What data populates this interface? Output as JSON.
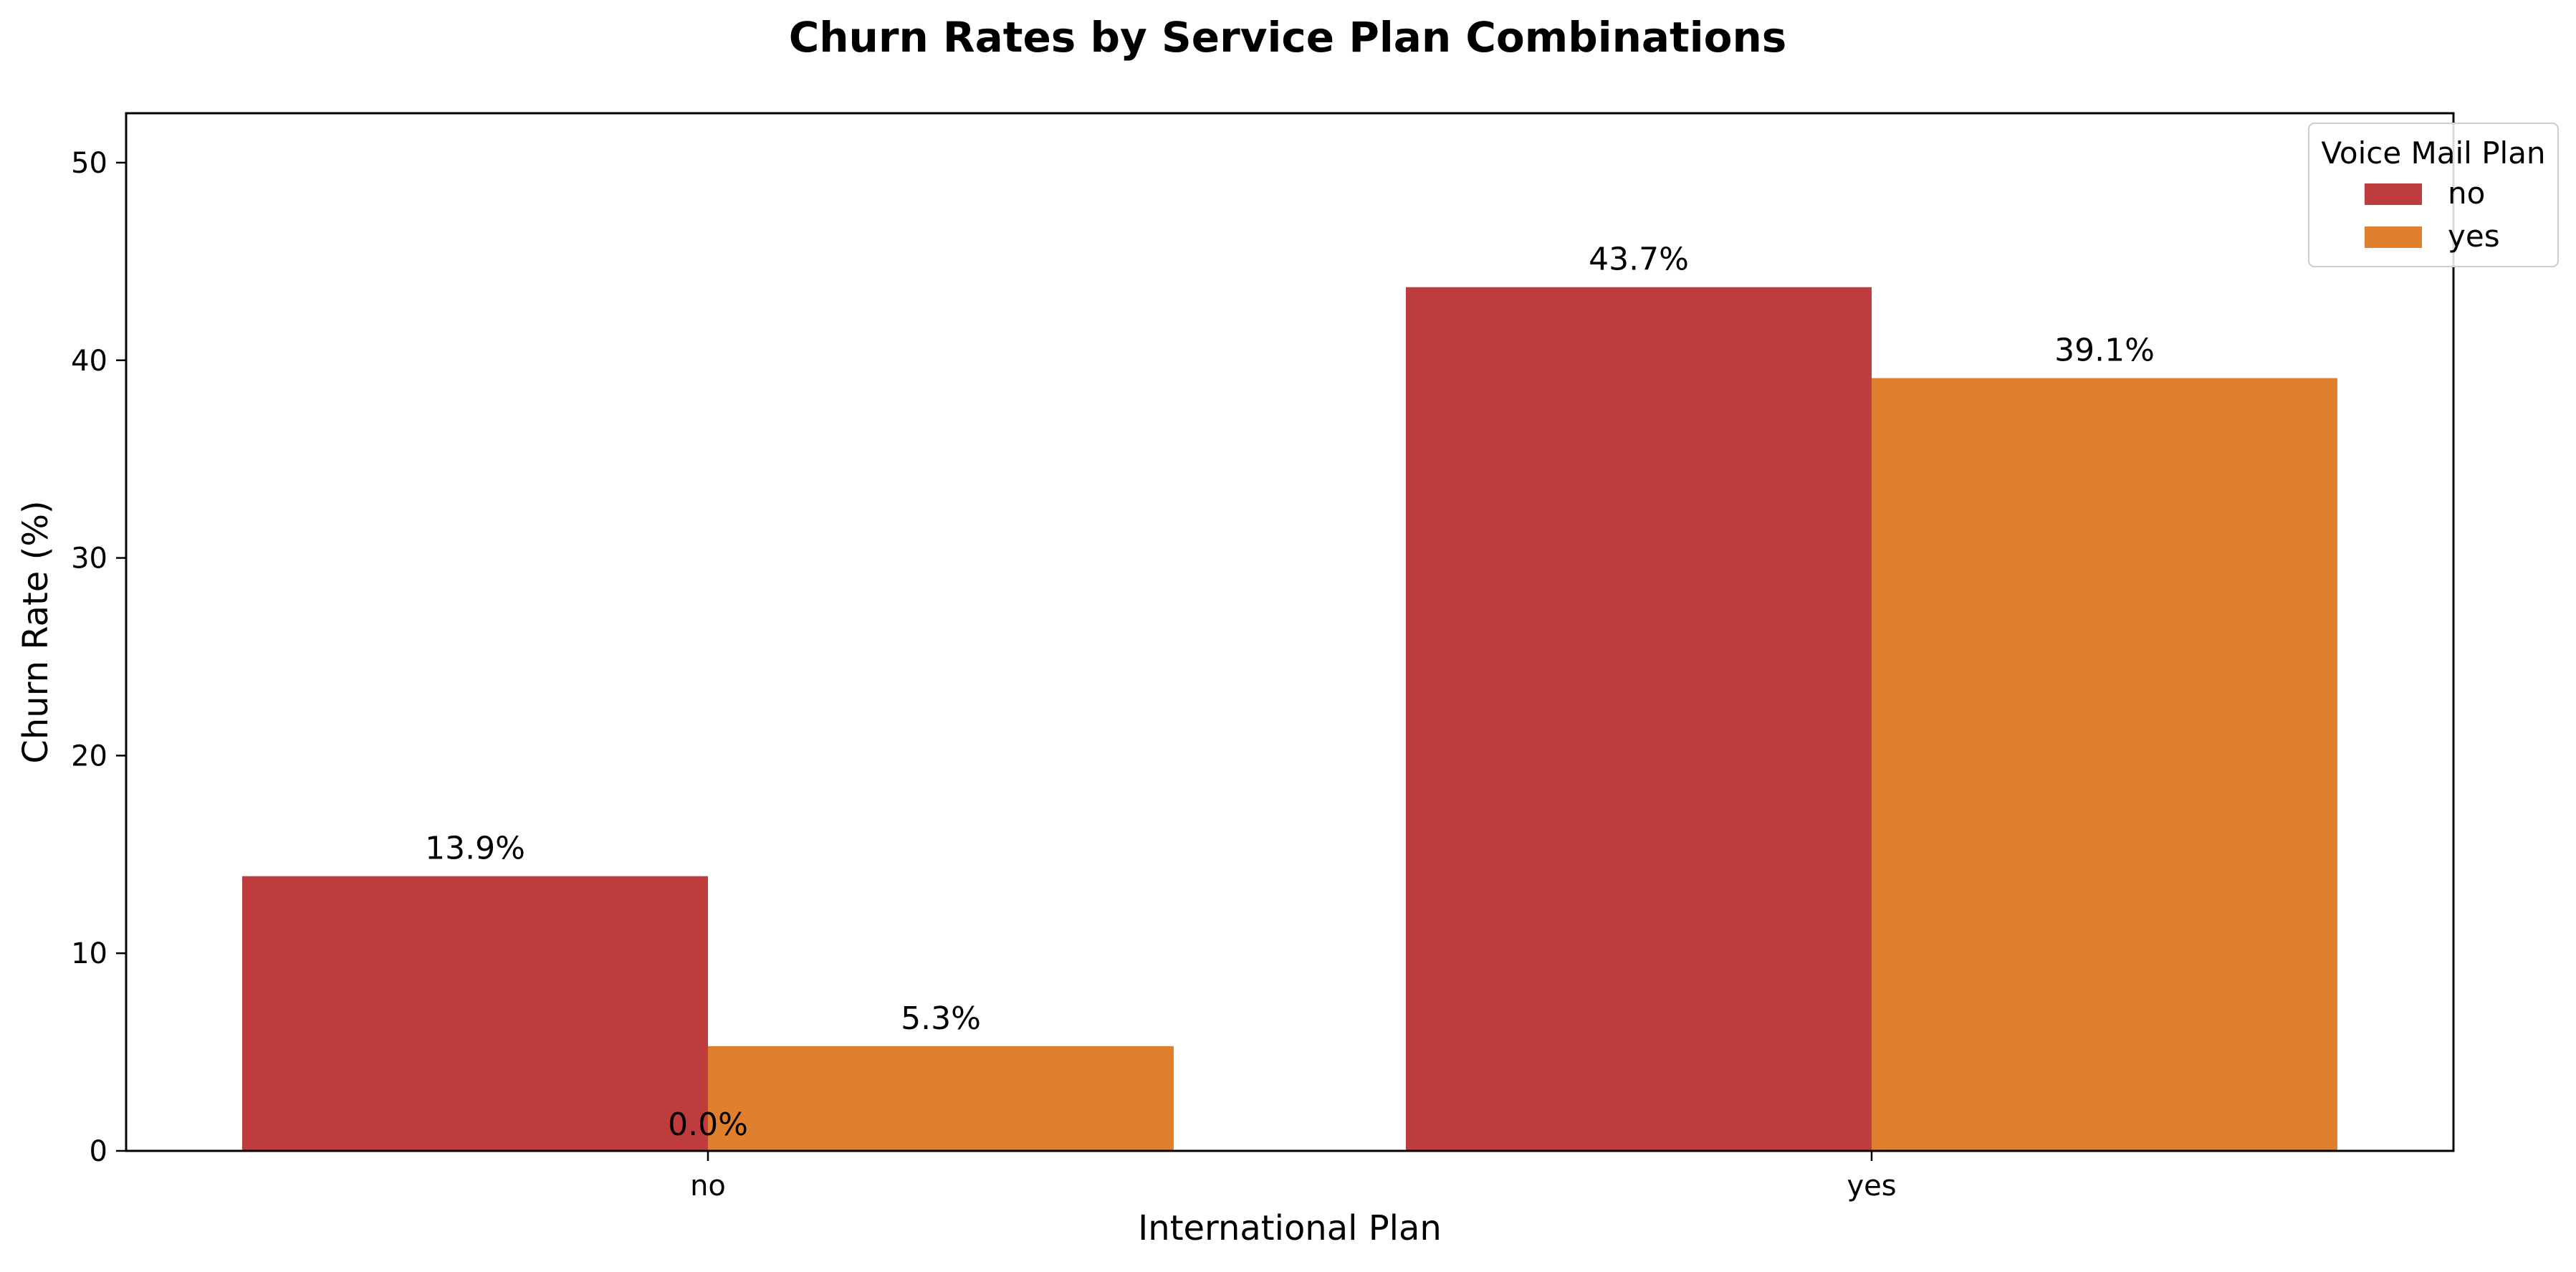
{
  "chart_data": {
    "type": "bar",
    "title": "Churn Rates by Service Plan Combinations",
    "xlabel": "International Plan",
    "ylabel": "Churn Rate (%)",
    "categories": [
      "no",
      "yes"
    ],
    "ylim": [
      0,
      52.5
    ],
    "yticks": [
      0,
      10,
      20,
      30,
      40,
      50
    ],
    "grid": false,
    "legend": {
      "title": "Voice Mail Plan",
      "placement": "top-right"
    },
    "series": [
      {
        "name": "no",
        "color": "#bf3c3e",
        "values": [
          13.9,
          43.7
        ],
        "labels": [
          "13.9%",
          "43.7%"
        ]
      },
      {
        "name": "yes",
        "color": "#e0802e",
        "values": [
          5.3,
          39.1
        ],
        "labels": [
          "5.3%",
          "39.1%"
        ]
      }
    ],
    "annotations": [
      {
        "text": "0.0%",
        "x": "no",
        "y": 0
      }
    ]
  }
}
